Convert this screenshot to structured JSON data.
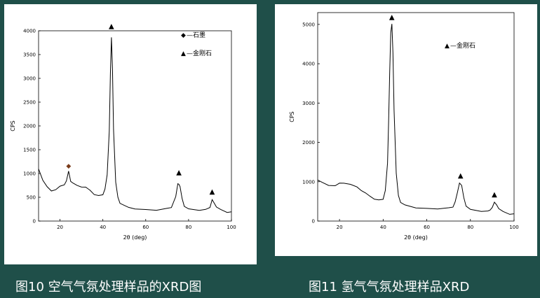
{
  "captions": {
    "left": "图10 空气气氛处理样品的XRD图",
    "right": "图11 氢气气氛处理样品XRD"
  },
  "chart_data": [
    {
      "type": "line",
      "xlabel": "2θ (deg)",
      "ylabel": "CPS",
      "xlim": [
        10,
        100
      ],
      "ylim": [
        0,
        4000
      ],
      "xticks": [
        20,
        40,
        60,
        80,
        100
      ],
      "yticks": [
        0,
        500,
        1000,
        1500,
        2000,
        2500,
        3000,
        3500,
        4000
      ],
      "legend": [
        {
          "symbol": "◆",
          "label": "—石墨"
        },
        {
          "symbol": "▲",
          "label": "—金刚石"
        }
      ],
      "legend_position": "top-right",
      "series": [
        {
          "x": [
            10,
            12,
            14,
            16,
            18,
            20,
            22,
            23,
            24,
            25,
            26,
            28,
            30,
            32,
            34,
            36,
            38,
            40,
            41,
            42,
            43,
            43.5,
            44,
            44.5,
            45,
            46,
            47,
            48,
            50,
            52,
            55,
            60,
            65,
            70,
            72,
            74,
            75,
            75.5,
            76,
            77,
            78,
            80,
            85,
            88,
            90,
            91,
            92,
            93,
            95,
            98,
            100
          ],
          "y": [
            1100,
            850,
            700,
            650,
            680,
            720,
            760,
            850,
            1050,
            820,
            780,
            760,
            740,
            700,
            640,
            560,
            520,
            560,
            700,
            1000,
            1900,
            3100,
            3850,
            3200,
            1900,
            800,
            500,
            380,
            320,
            290,
            270,
            250,
            240,
            240,
            290,
            520,
            780,
            800,
            720,
            480,
            330,
            260,
            240,
            240,
            300,
            470,
            380,
            280,
            220,
            200,
            190
          ]
        }
      ],
      "markers": [
        {
          "symbol": "◆",
          "x": 24,
          "y": 1120
        },
        {
          "symbol": "▲",
          "x": 44,
          "y": 4050
        },
        {
          "symbol": "▲",
          "x": 75.5,
          "y": 980
        },
        {
          "symbol": "▲",
          "x": 91,
          "y": 570
        }
      ]
    },
    {
      "type": "line",
      "xlabel": "2θ (deg)",
      "ylabel": "CPS",
      "xlim": [
        10,
        100
      ],
      "ylim": [
        0,
        5300
      ],
      "xticks": [
        20,
        40,
        60,
        80,
        100
      ],
      "yticks": [
        0,
        1000,
        2000,
        3000,
        4000,
        5000
      ],
      "legend": [
        {
          "symbol": "▲",
          "label": "—金刚石"
        }
      ],
      "legend_position": "top-right",
      "series": [
        {
          "x": [
            10,
            12,
            15,
            18,
            20,
            22,
            25,
            28,
            30,
            32,
            34,
            36,
            38,
            40,
            41,
            42,
            42.5,
            43,
            43.5,
            44,
            44.5,
            45,
            46,
            47,
            48,
            50,
            55,
            60,
            65,
            70,
            72,
            73,
            74,
            75,
            76,
            77,
            78,
            80,
            85,
            88,
            89,
            90,
            91,
            92,
            93,
            95,
            98,
            100
          ],
          "y": [
            1050,
            980,
            900,
            920,
            950,
            960,
            920,
            880,
            800,
            700,
            620,
            560,
            520,
            560,
            800,
            1500,
            2500,
            3800,
            4800,
            5000,
            4300,
            2800,
            1200,
            650,
            480,
            400,
            350,
            330,
            320,
            310,
            360,
            500,
            720,
            960,
            900,
            600,
            400,
            300,
            260,
            250,
            280,
            360,
            500,
            420,
            300,
            220,
            190,
            180
          ]
        }
      ],
      "markers": [
        {
          "symbol": "▲",
          "x": 44,
          "y": 5130
        },
        {
          "symbol": "▲",
          "x": 75.5,
          "y": 1100
        },
        {
          "symbol": "▲",
          "x": 91,
          "y": 620
        }
      ]
    }
  ]
}
